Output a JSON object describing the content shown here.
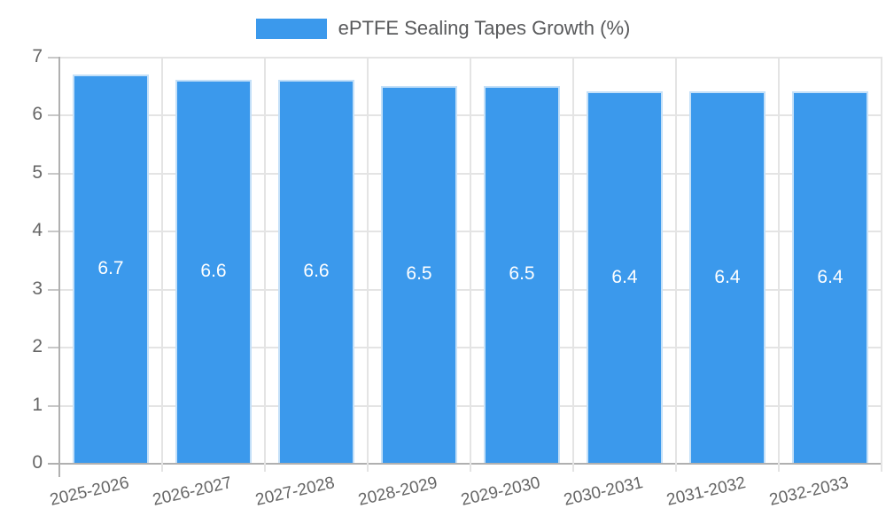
{
  "chart_data": {
    "type": "bar",
    "title": "ePTFE Sealing Tapes Growth (%)",
    "legend_position": "top",
    "grid": true,
    "categories": [
      "2025-2026",
      "2026-2027",
      "2027-2028",
      "2028-2029",
      "2029-2030",
      "2030-2031",
      "2031-2032",
      "2032-2033"
    ],
    "series": [
      {
        "name": "ePTFE Sealing Tapes Growth (%)",
        "values": [
          6.7,
          6.6,
          6.6,
          6.5,
          6.5,
          6.4,
          6.4,
          6.4
        ]
      }
    ],
    "value_labels": [
      "6.7",
      "6.6",
      "6.6",
      "6.5",
      "6.5",
      "6.4",
      "6.4",
      "6.4"
    ],
    "xlabel": "",
    "ylabel": "",
    "ylim": [
      0,
      7
    ],
    "yticks": [
      0,
      1,
      2,
      3,
      4,
      5,
      6,
      7
    ],
    "colors": {
      "bar": "#3b99ec",
      "bar_border": "#c4e0f8",
      "grid": "#e4e4e4",
      "axis": "#b0b0b0",
      "tick_stub": "#c8c8c8",
      "tick_label": "#666666",
      "legend_text": "#58595b",
      "value_label": "#ffffff",
      "background": "#ffffff"
    }
  }
}
